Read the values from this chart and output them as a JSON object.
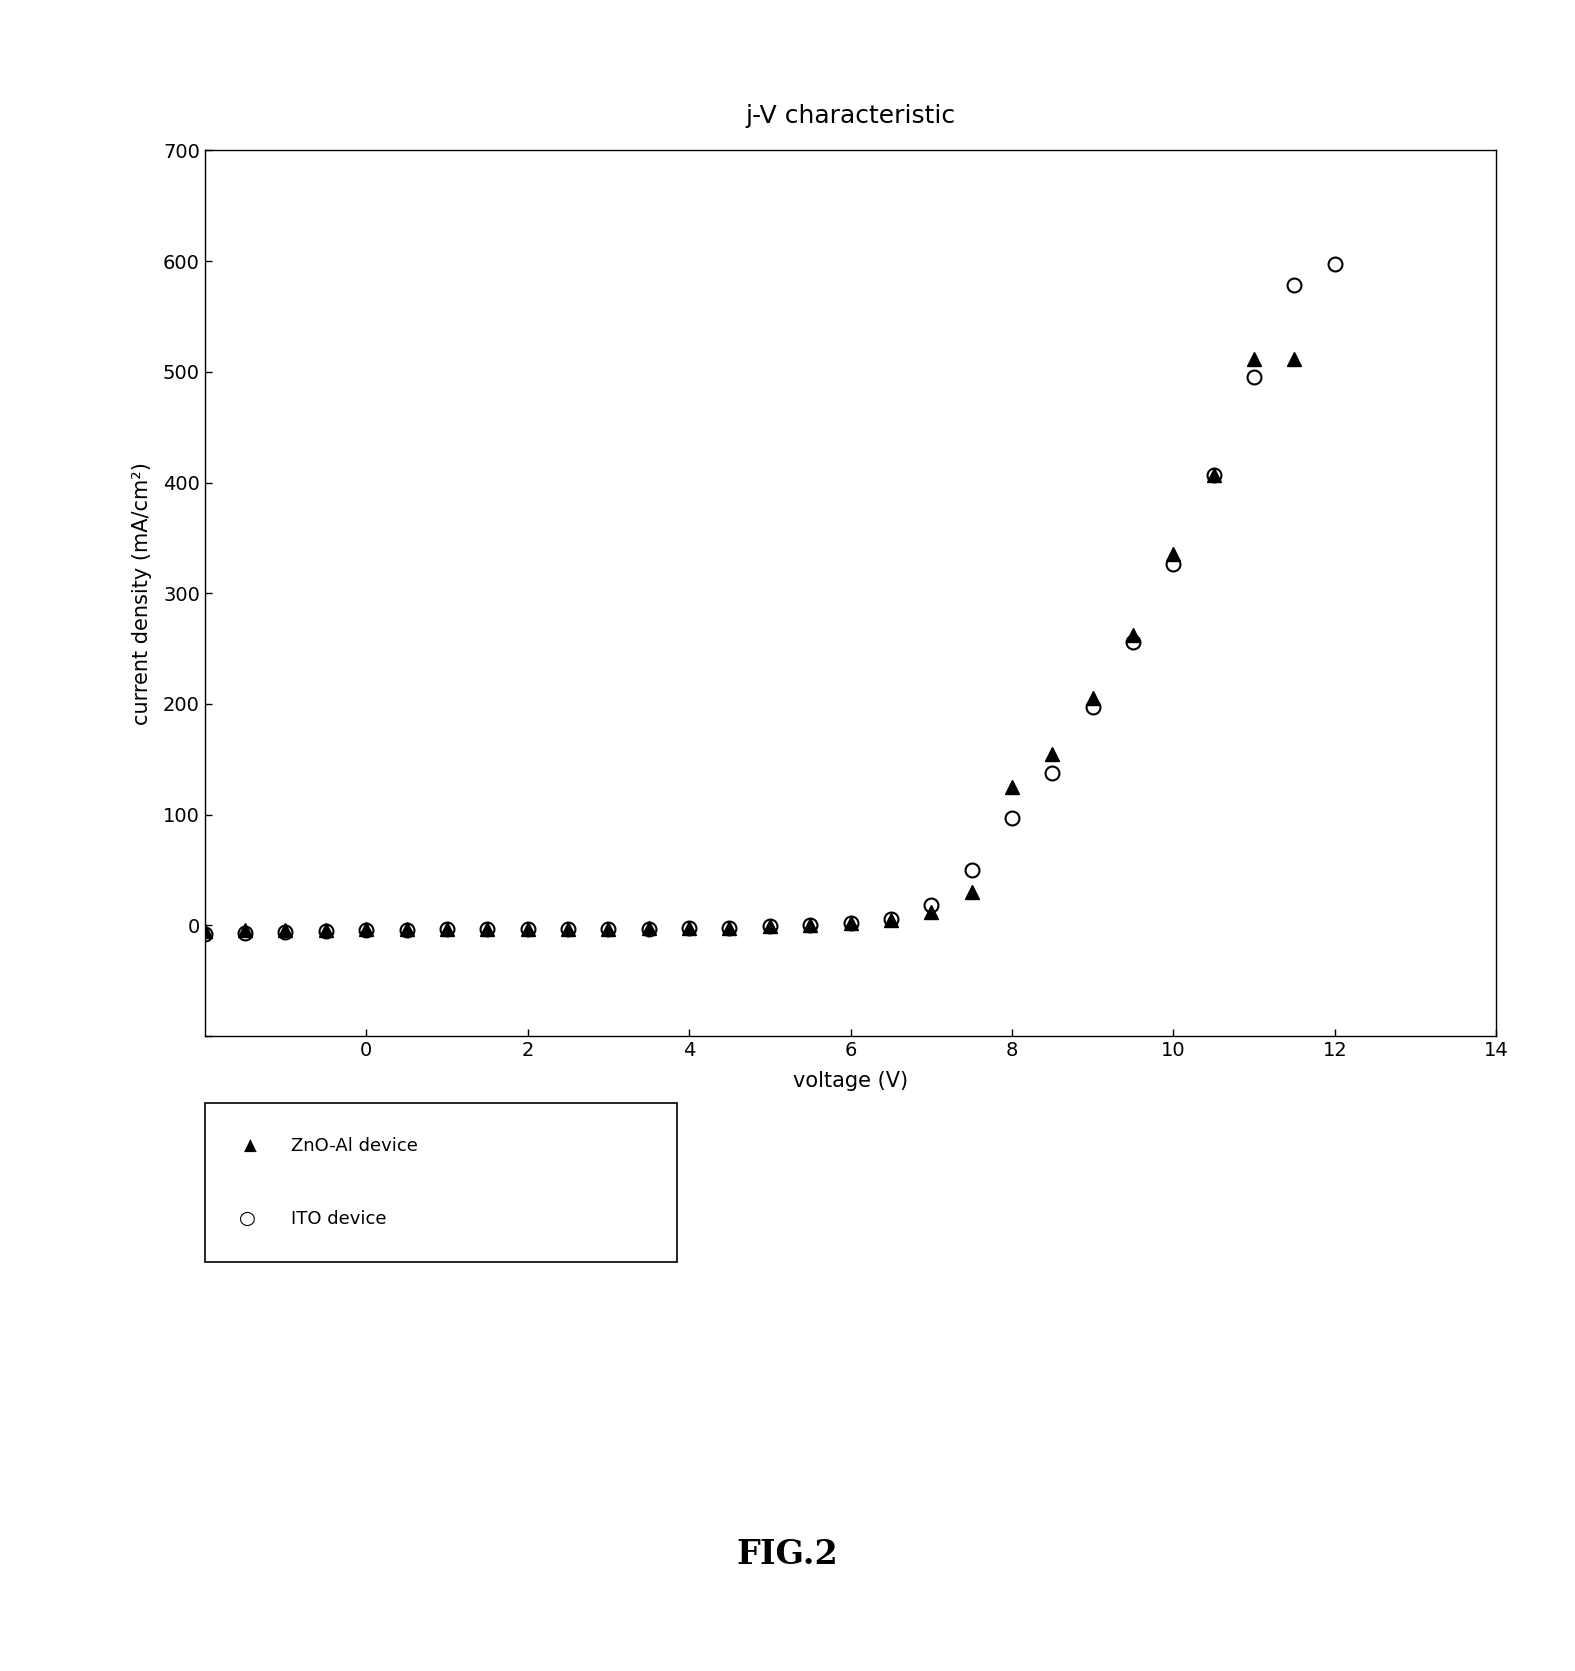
{
  "title": "j-V characteristic",
  "xlabel": "voltage (V)",
  "ylabel": "current density (mA/cm²)",
  "xlim": [
    -2,
    14
  ],
  "ylim": [
    -100,
    700
  ],
  "xticks": [
    0,
    2,
    4,
    6,
    8,
    10,
    12,
    14
  ],
  "yticks": [
    -100,
    0,
    100,
    200,
    300,
    400,
    500,
    600,
    700
  ],
  "ytick_labels": [
    "",
    "0",
    "100",
    "200",
    "300",
    "400",
    "500",
    "600",
    "700"
  ],
  "fig_caption": "FIG.2",
  "zno_x": [
    -2,
    -1.5,
    -1,
    -0.5,
    0,
    0.5,
    1,
    1.5,
    2,
    2.5,
    3,
    3.5,
    4,
    4.5,
    5,
    5.5,
    6,
    6.5,
    7,
    7.5,
    8,
    8.5,
    9,
    9.5,
    10,
    10.5,
    11,
    11.5
  ],
  "zno_y": [
    -5,
    -4,
    -4,
    -4,
    -3,
    -3,
    -3,
    -3,
    -3,
    -3,
    -3,
    -2,
    -2,
    -2,
    -1,
    0,
    2,
    5,
    12,
    30,
    125,
    155,
    205,
    262,
    335,
    407,
    512,
    512
  ],
  "ito_x": [
    -2,
    -1.5,
    -1,
    -0.5,
    0,
    0.5,
    1,
    1.5,
    2,
    2.5,
    3,
    3.5,
    4,
    4.5,
    5,
    5.5,
    6,
    6.5,
    7,
    7.5,
    8,
    8.5,
    9,
    9.5,
    10,
    10.5,
    11,
    11.5,
    12
  ],
  "ito_y": [
    -8,
    -7,
    -6,
    -5,
    -4,
    -4,
    -3,
    -3,
    -3,
    -3,
    -3,
    -3,
    -2,
    -2,
    -1,
    0,
    2,
    6,
    18,
    50,
    97,
    138,
    197,
    256,
    326,
    407,
    495,
    578,
    597
  ],
  "legend_zno": "ZnO-Al device",
  "legend_ito": "ITO device",
  "bg_color": "#ffffff",
  "marker_color": "#000000",
  "font_size_title": 18,
  "font_size_axis_label": 15,
  "font_size_tick": 14,
  "font_size_legend": 13,
  "font_size_caption": 24
}
